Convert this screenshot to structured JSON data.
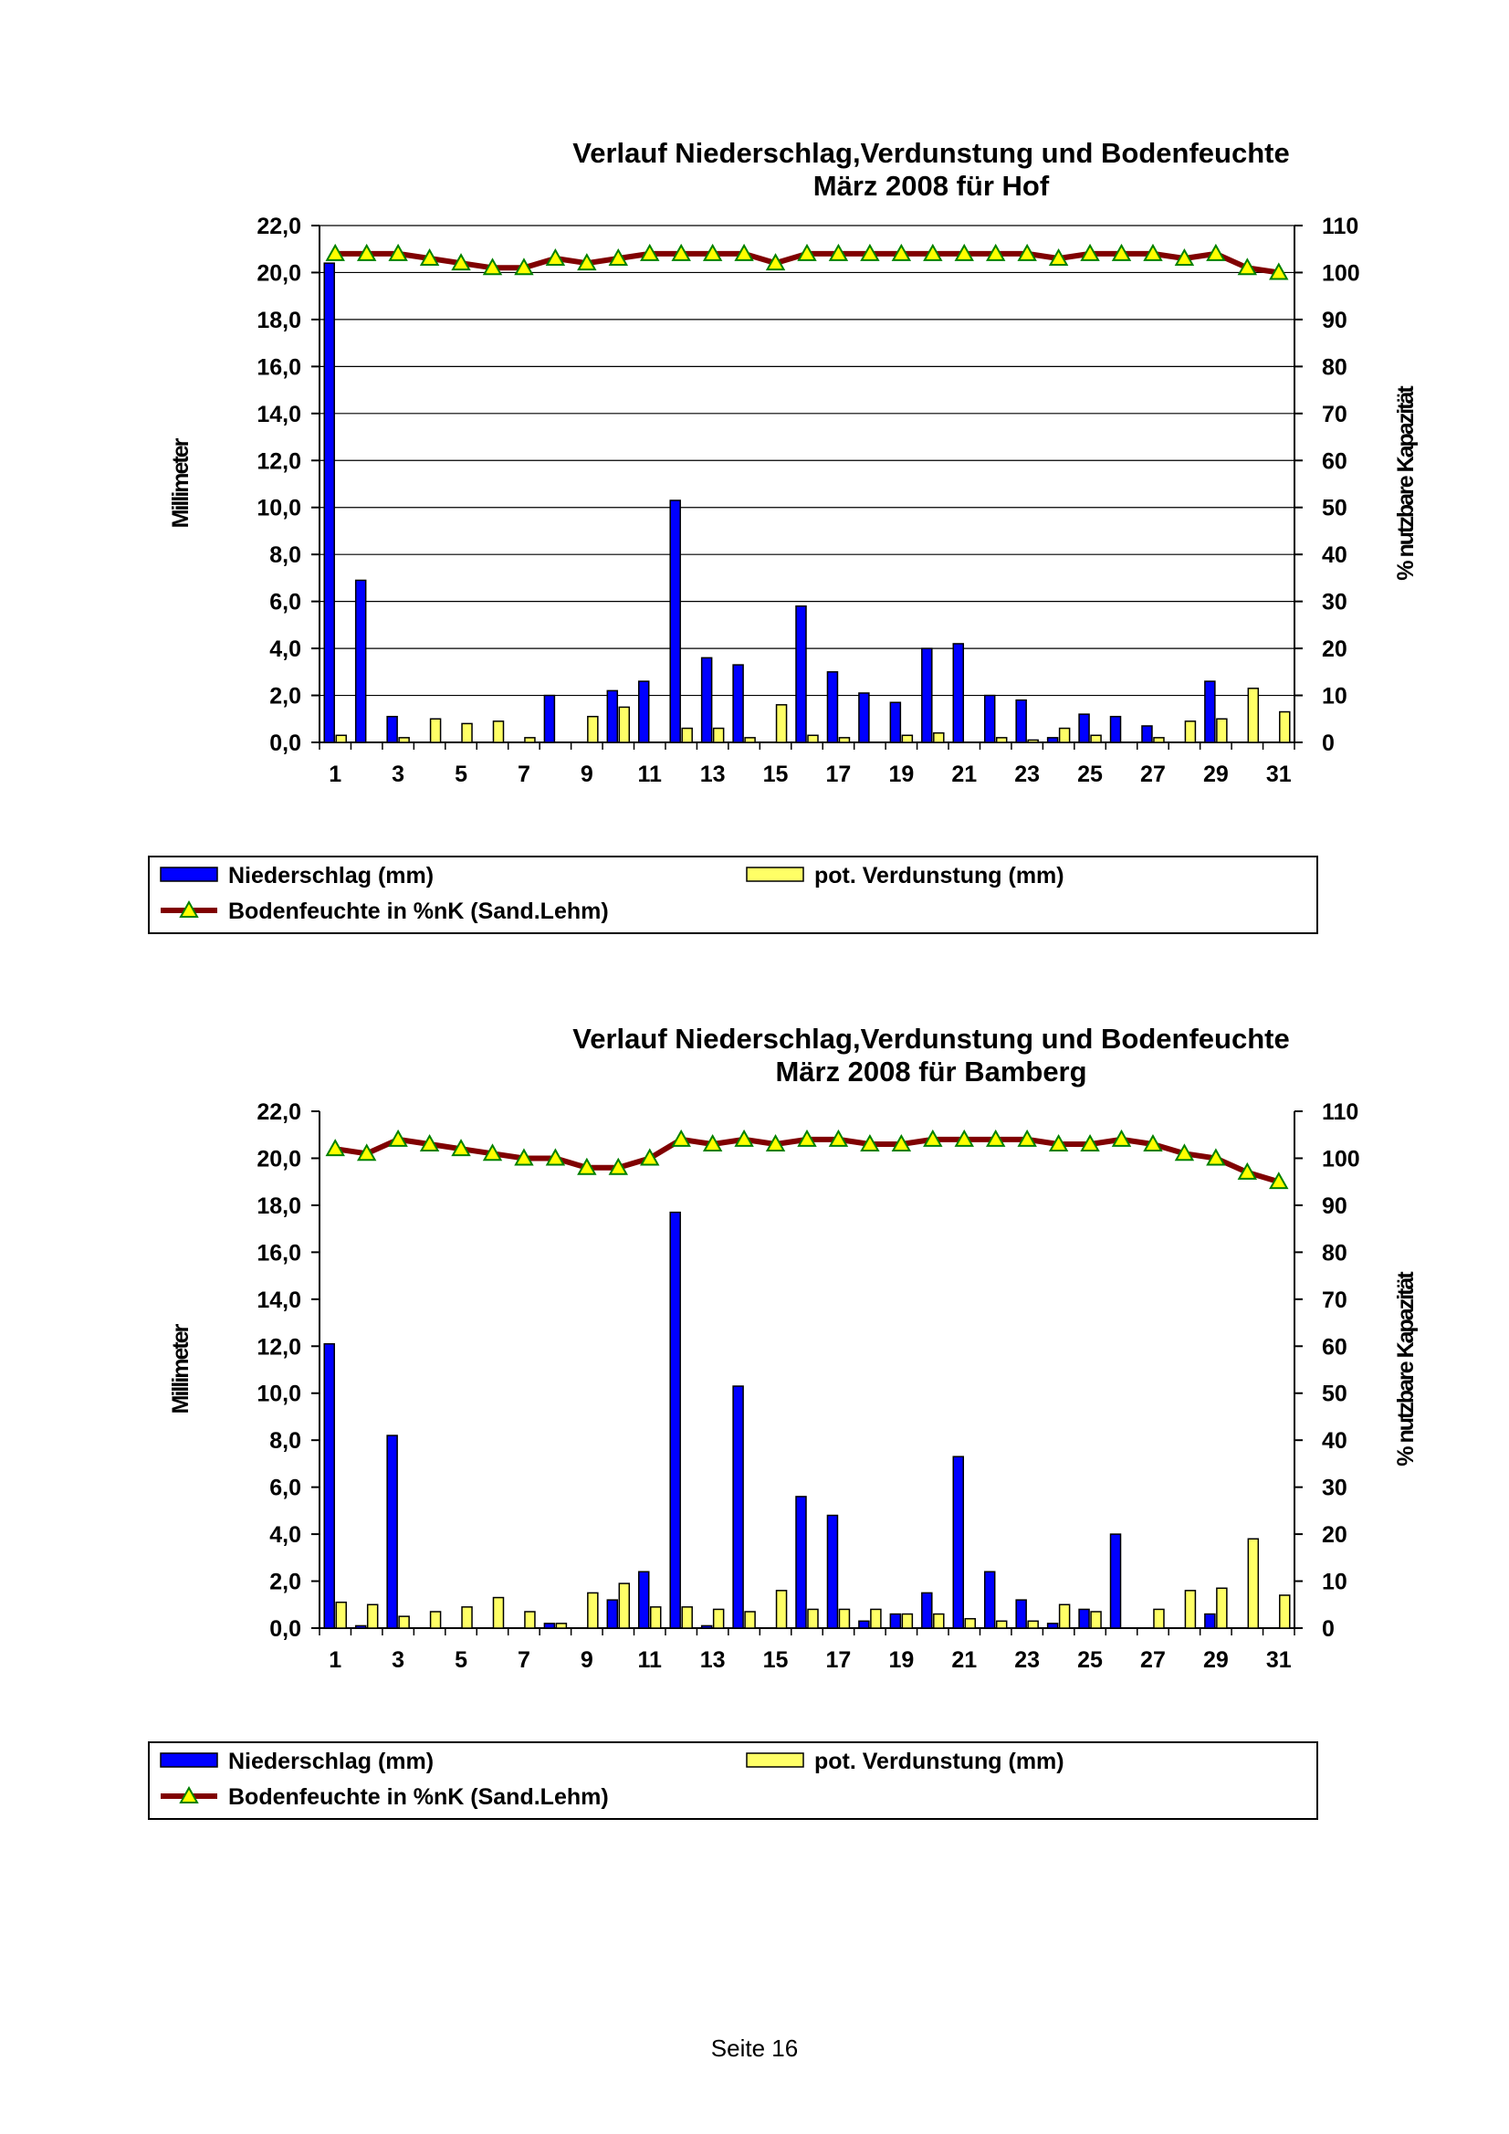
{
  "page": {
    "footer": "Seite 16"
  },
  "chart_data": [
    {
      "type": "bar",
      "title_line1": "Verlauf Niederschlag,Verdunstung und Bodenfeuchte",
      "title_line2": "März 2008 für Hof",
      "ylabel": "Millimeter",
      "ylabel_right": "% nutzbare Kapazität",
      "ylim": [
        0,
        22
      ],
      "ylim_right": [
        0,
        110
      ],
      "yticks": [
        "0,0",
        "2,0",
        "4,0",
        "6,0",
        "8,0",
        "10,0",
        "12,0",
        "14,0",
        "16,0",
        "18,0",
        "20,0",
        "22,0"
      ],
      "yticks_right": [
        "0",
        "10",
        "20",
        "30",
        "40",
        "50",
        "60",
        "70",
        "80",
        "90",
        "100",
        "110"
      ],
      "xticks": [
        "1",
        "3",
        "5",
        "7",
        "9",
        "11",
        "13",
        "15",
        "17",
        "19",
        "21",
        "23",
        "25",
        "27",
        "29",
        "31"
      ],
      "grid": true,
      "legend_placement": "bottom",
      "categories": [
        1,
        2,
        3,
        4,
        5,
        6,
        7,
        8,
        9,
        10,
        11,
        12,
        13,
        14,
        15,
        16,
        17,
        18,
        19,
        20,
        21,
        22,
        23,
        24,
        25,
        26,
        27,
        28,
        29,
        30,
        31
      ],
      "series": [
        {
          "name": "Niederschlag (mm)",
          "kind": "bar",
          "axis": "left",
          "color": "#0000ff",
          "values": [
            20.4,
            6.9,
            1.1,
            0,
            0,
            0,
            0,
            2.0,
            0,
            2.2,
            2.6,
            10.3,
            3.6,
            3.3,
            0,
            5.8,
            3.0,
            2.1,
            1.7,
            4.0,
            4.2,
            2.0,
            1.8,
            0.2,
            1.2,
            1.1,
            0.7,
            0,
            2.6,
            0,
            0
          ]
        },
        {
          "name": "pot. Verdunstung (mm)",
          "kind": "bar",
          "axis": "left",
          "color": "#ffff66",
          "values": [
            0.3,
            0,
            0.2,
            1.0,
            0.8,
            0.9,
            0.2,
            0,
            1.1,
            1.5,
            0,
            0.6,
            0.6,
            0.2,
            1.6,
            0.3,
            0.2,
            0,
            0.3,
            0.4,
            0,
            0.2,
            0.1,
            0.6,
            0.3,
            0,
            0.2,
            0.9,
            1.0,
            2.3,
            1.3
          ]
        },
        {
          "name": "Bodenfeuchte in %nK (Sand.Lehm)",
          "kind": "line",
          "axis": "right",
          "color": "#800000",
          "values": [
            104,
            104,
            104,
            103,
            102,
            101,
            101,
            103,
            102,
            103,
            104,
            104,
            104,
            104,
            102,
            104,
            104,
            104,
            104,
            104,
            104,
            104,
            104,
            103,
            104,
            104,
            104,
            103,
            104,
            101,
            100
          ]
        }
      ]
    },
    {
      "type": "bar",
      "title_line1": "Verlauf Niederschlag,Verdunstung und Bodenfeuchte",
      "title_line2": "März 2008 für Bamberg",
      "ylabel": "Millimeter",
      "ylabel_right": "% nutzbare Kapazität",
      "ylim": [
        0,
        22
      ],
      "ylim_right": [
        0,
        110
      ],
      "yticks": [
        "0,0",
        "2,0",
        "4,0",
        "6,0",
        "8,0",
        "10,0",
        "12,0",
        "14,0",
        "16,0",
        "18,0",
        "20,0",
        "22,0"
      ],
      "yticks_right": [
        "0",
        "10",
        "20",
        "30",
        "40",
        "50",
        "60",
        "70",
        "80",
        "90",
        "100",
        "110"
      ],
      "xticks": [
        "1",
        "3",
        "5",
        "7",
        "9",
        "11",
        "13",
        "15",
        "17",
        "19",
        "21",
        "23",
        "25",
        "27",
        "29",
        "31"
      ],
      "grid": false,
      "legend_placement": "bottom",
      "categories": [
        1,
        2,
        3,
        4,
        5,
        6,
        7,
        8,
        9,
        10,
        11,
        12,
        13,
        14,
        15,
        16,
        17,
        18,
        19,
        20,
        21,
        22,
        23,
        24,
        25,
        26,
        27,
        28,
        29,
        30,
        31
      ],
      "series": [
        {
          "name": "Niederschlag (mm)",
          "kind": "bar",
          "axis": "left",
          "color": "#0000ff",
          "values": [
            12.1,
            0.1,
            8.2,
            0,
            0,
            0,
            0,
            0.2,
            0,
            1.2,
            2.4,
            17.7,
            0.1,
            10.3,
            0,
            5.6,
            4.8,
            0.3,
            0.6,
            1.5,
            7.3,
            2.4,
            1.2,
            0.2,
            0.8,
            4.0,
            0,
            0,
            0.6,
            0,
            0
          ]
        },
        {
          "name": "pot. Verdunstung (mm)",
          "kind": "bar",
          "axis": "left",
          "color": "#ffff66",
          "values": [
            1.1,
            1.0,
            0.5,
            0.7,
            0.9,
            1.3,
            0.7,
            0.2,
            1.5,
            1.9,
            0.9,
            0.9,
            0.8,
            0.7,
            1.6,
            0.8,
            0.8,
            0.8,
            0.6,
            0.6,
            0.4,
            0.3,
            0.3,
            1.0,
            0.7,
            0,
            0.8,
            1.6,
            1.7,
            3.8,
            1.4
          ]
        },
        {
          "name": "Bodenfeuchte in %nK (Sand.Lehm)",
          "kind": "line",
          "axis": "right",
          "color": "#800000",
          "values": [
            102,
            101,
            104,
            103,
            102,
            101,
            100,
            100,
            98,
            98,
            100,
            104,
            103,
            104,
            103,
            104,
            104,
            103,
            103,
            104,
            104,
            104,
            104,
            103,
            103,
            104,
            103,
            101,
            100,
            97,
            95
          ]
        }
      ]
    }
  ]
}
